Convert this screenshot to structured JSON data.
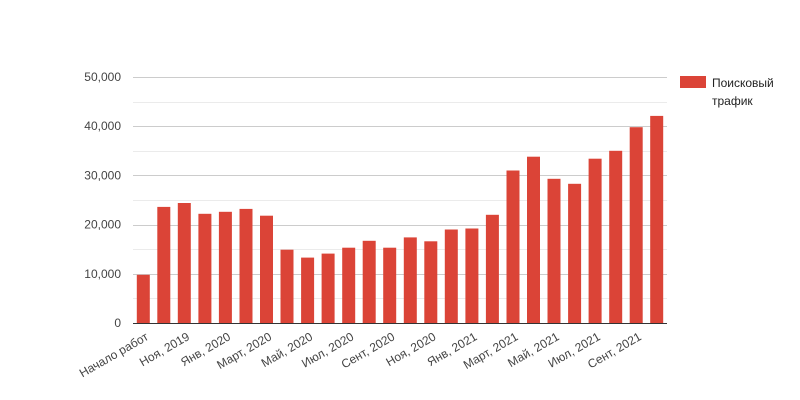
{
  "chart_data": {
    "type": "bar",
    "categories": [
      "Начало работ",
      "",
      "Ноя, 2019",
      "",
      "Янв, 2020",
      "",
      "Март, 2020",
      "",
      "Май, 2020",
      "",
      "Июл, 2020",
      "",
      "Сент, 2020",
      "",
      "Ноя, 2020",
      "",
      "Янв, 2021",
      "",
      "Март, 2021",
      "",
      "Май, 2021",
      "",
      "Июл, 2021",
      "",
      "Сент, 2021",
      ""
    ],
    "series": [
      {
        "name": "Поисковый трафик",
        "color": "#db4437",
        "values": [
          9800,
          23600,
          24400,
          22200,
          22600,
          23200,
          21800,
          14900,
          13300,
          14100,
          15300,
          16700,
          15300,
          17400,
          16600,
          19000,
          19200,
          22000,
          31000,
          33800,
          29300,
          28300,
          33400,
          35000,
          39800,
          42100
        ]
      }
    ],
    "ylim": [
      0,
      50000
    ],
    "yticks": [
      0,
      10000,
      20000,
      30000,
      40000,
      50000
    ],
    "ytick_labels": [
      "0",
      "10,000",
      "20,000",
      "30,000",
      "40,000",
      "50,000"
    ],
    "grid": true,
    "legend": {
      "position": "right",
      "lines": [
        "Поисковый",
        "трафик"
      ]
    },
    "title": "",
    "xlabel": "",
    "ylabel": ""
  }
}
